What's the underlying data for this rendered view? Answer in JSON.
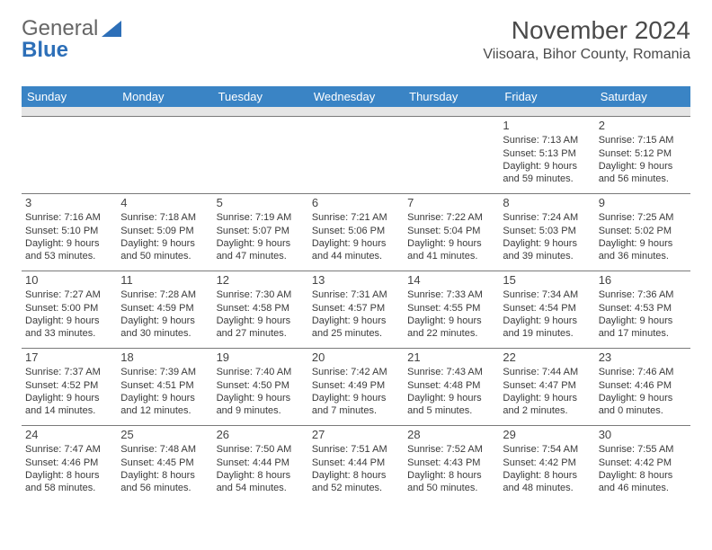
{
  "logo": {
    "part1": "General",
    "part2": "Blue"
  },
  "title": "November 2024",
  "location": "Viisoara, Bihor County, Romania",
  "colors": {
    "header_bg": "#3a84c5",
    "header_text": "#ffffff",
    "border": "#7a7a7a",
    "spacer": "#e5e5e5",
    "text": "#3a3a3a"
  },
  "day_headers": [
    "Sunday",
    "Monday",
    "Tuesday",
    "Wednesday",
    "Thursday",
    "Friday",
    "Saturday"
  ],
  "weeks": [
    [
      null,
      null,
      null,
      null,
      null,
      {
        "n": "1",
        "sr": "7:13 AM",
        "ss": "5:13 PM",
        "dl": "9 hours and 59 minutes."
      },
      {
        "n": "2",
        "sr": "7:15 AM",
        "ss": "5:12 PM",
        "dl": "9 hours and 56 minutes."
      }
    ],
    [
      {
        "n": "3",
        "sr": "7:16 AM",
        "ss": "5:10 PM",
        "dl": "9 hours and 53 minutes."
      },
      {
        "n": "4",
        "sr": "7:18 AM",
        "ss": "5:09 PM",
        "dl": "9 hours and 50 minutes."
      },
      {
        "n": "5",
        "sr": "7:19 AM",
        "ss": "5:07 PM",
        "dl": "9 hours and 47 minutes."
      },
      {
        "n": "6",
        "sr": "7:21 AM",
        "ss": "5:06 PM",
        "dl": "9 hours and 44 minutes."
      },
      {
        "n": "7",
        "sr": "7:22 AM",
        "ss": "5:04 PM",
        "dl": "9 hours and 41 minutes."
      },
      {
        "n": "8",
        "sr": "7:24 AM",
        "ss": "5:03 PM",
        "dl": "9 hours and 39 minutes."
      },
      {
        "n": "9",
        "sr": "7:25 AM",
        "ss": "5:02 PM",
        "dl": "9 hours and 36 minutes."
      }
    ],
    [
      {
        "n": "10",
        "sr": "7:27 AM",
        "ss": "5:00 PM",
        "dl": "9 hours and 33 minutes."
      },
      {
        "n": "11",
        "sr": "7:28 AM",
        "ss": "4:59 PM",
        "dl": "9 hours and 30 minutes."
      },
      {
        "n": "12",
        "sr": "7:30 AM",
        "ss": "4:58 PM",
        "dl": "9 hours and 27 minutes."
      },
      {
        "n": "13",
        "sr": "7:31 AM",
        "ss": "4:57 PM",
        "dl": "9 hours and 25 minutes."
      },
      {
        "n": "14",
        "sr": "7:33 AM",
        "ss": "4:55 PM",
        "dl": "9 hours and 22 minutes."
      },
      {
        "n": "15",
        "sr": "7:34 AM",
        "ss": "4:54 PM",
        "dl": "9 hours and 19 minutes."
      },
      {
        "n": "16",
        "sr": "7:36 AM",
        "ss": "4:53 PM",
        "dl": "9 hours and 17 minutes."
      }
    ],
    [
      {
        "n": "17",
        "sr": "7:37 AM",
        "ss": "4:52 PM",
        "dl": "9 hours and 14 minutes."
      },
      {
        "n": "18",
        "sr": "7:39 AM",
        "ss": "4:51 PM",
        "dl": "9 hours and 12 minutes."
      },
      {
        "n": "19",
        "sr": "7:40 AM",
        "ss": "4:50 PM",
        "dl": "9 hours and 9 minutes."
      },
      {
        "n": "20",
        "sr": "7:42 AM",
        "ss": "4:49 PM",
        "dl": "9 hours and 7 minutes."
      },
      {
        "n": "21",
        "sr": "7:43 AM",
        "ss": "4:48 PM",
        "dl": "9 hours and 5 minutes."
      },
      {
        "n": "22",
        "sr": "7:44 AM",
        "ss": "4:47 PM",
        "dl": "9 hours and 2 minutes."
      },
      {
        "n": "23",
        "sr": "7:46 AM",
        "ss": "4:46 PM",
        "dl": "9 hours and 0 minutes."
      }
    ],
    [
      {
        "n": "24",
        "sr": "7:47 AM",
        "ss": "4:46 PM",
        "dl": "8 hours and 58 minutes."
      },
      {
        "n": "25",
        "sr": "7:48 AM",
        "ss": "4:45 PM",
        "dl": "8 hours and 56 minutes."
      },
      {
        "n": "26",
        "sr": "7:50 AM",
        "ss": "4:44 PM",
        "dl": "8 hours and 54 minutes."
      },
      {
        "n": "27",
        "sr": "7:51 AM",
        "ss": "4:44 PM",
        "dl": "8 hours and 52 minutes."
      },
      {
        "n": "28",
        "sr": "7:52 AM",
        "ss": "4:43 PM",
        "dl": "8 hours and 50 minutes."
      },
      {
        "n": "29",
        "sr": "7:54 AM",
        "ss": "4:42 PM",
        "dl": "8 hours and 48 minutes."
      },
      {
        "n": "30",
        "sr": "7:55 AM",
        "ss": "4:42 PM",
        "dl": "8 hours and 46 minutes."
      }
    ]
  ],
  "labels": {
    "sunrise": "Sunrise:",
    "sunset": "Sunset:",
    "daylight": "Daylight:"
  }
}
